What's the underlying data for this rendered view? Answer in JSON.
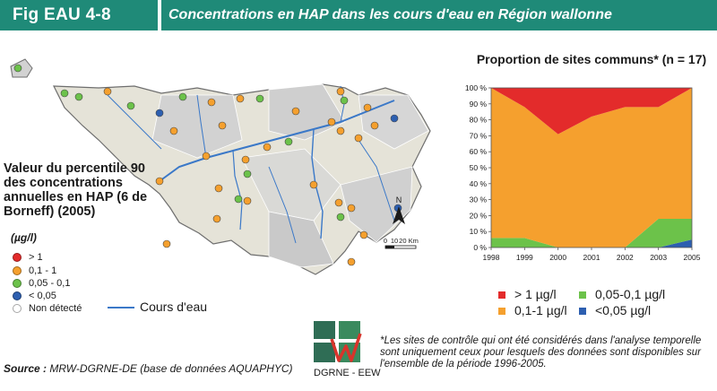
{
  "header": {
    "fig_tag": "Fig EAU 4-8",
    "title": "Concentrations en HAP dans les cours d'eau en Région wallonne"
  },
  "map": {
    "title": "Valeur du percentile 90 des concentrations annuelles en HAP (6 de Borneff) (2005)",
    "unit": "(µg/l)",
    "legend": [
      {
        "label": "> 1",
        "color": "#e32b2b"
      },
      {
        "label": "0,1 - 1",
        "color": "#f5a02e"
      },
      {
        "label": "0,05 - 0,1",
        "color": "#6cc24a"
      },
      {
        "label": "< 0,05",
        "color": "#2d5fb0"
      },
      {
        "label": "Non détecté",
        "color": "#ffffff"
      }
    ],
    "river_label": "Cours d'eau",
    "north_label": "N",
    "scale_labels": [
      "0",
      "10",
      "20 Km"
    ],
    "river_color": "#3a78c8"
  },
  "chart_data": {
    "type": "area",
    "title": "Proportion de sites communs* (n = 17)",
    "x": [
      1998,
      1999,
      2000,
      2001,
      2002,
      2003,
      2005
    ],
    "y_ticks": [
      "0 %",
      "10 %",
      "20 %",
      "30 %",
      "40 %",
      "50 %",
      "60 %",
      "70 %",
      "80 %",
      "90 %",
      "100 %"
    ],
    "ylim": [
      0,
      100
    ],
    "stacking": "percent",
    "series": [
      {
        "name": "<0,05 µg/l",
        "color": "#2d5fb0",
        "values": [
          0,
          0,
          0,
          0,
          0,
          0,
          5
        ]
      },
      {
        "name": "0,05-0,1 µg/l",
        "color": "#6cc24a",
        "values": [
          6,
          6,
          0,
          0,
          0,
          18,
          13
        ]
      },
      {
        "name": "0,1-1 µg/l",
        "color": "#f5a02e",
        "values": [
          94,
          82,
          71,
          82,
          88,
          70,
          82
        ]
      },
      {
        "name": "> 1 µg/l",
        "color": "#e32b2b",
        "values": [
          0,
          12,
          29,
          18,
          12,
          12,
          0
        ]
      }
    ],
    "legend": [
      {
        "label": "> 1 µg/l",
        "color": "#e32b2b"
      },
      {
        "label": "0,05-0,1 µg/l",
        "color": "#6cc24a"
      },
      {
        "label": "0,1-1 µg/l",
        "color": "#f5a02e"
      },
      {
        "label": "<0,05 µg/l",
        "color": "#2d5fb0"
      }
    ]
  },
  "footnote": "*Les sites de contrôle qui ont été considérés dans l'analyse temporelle sont uniquement ceux pour lesquels des données sont disponibles sur l'ensemble de la période 1996-2005.",
  "source_label": "Source :",
  "source_text": "MRW-DGRNE-DE (base de données AQUAPHYC)",
  "logo_text": "DGRNE - EEW"
}
